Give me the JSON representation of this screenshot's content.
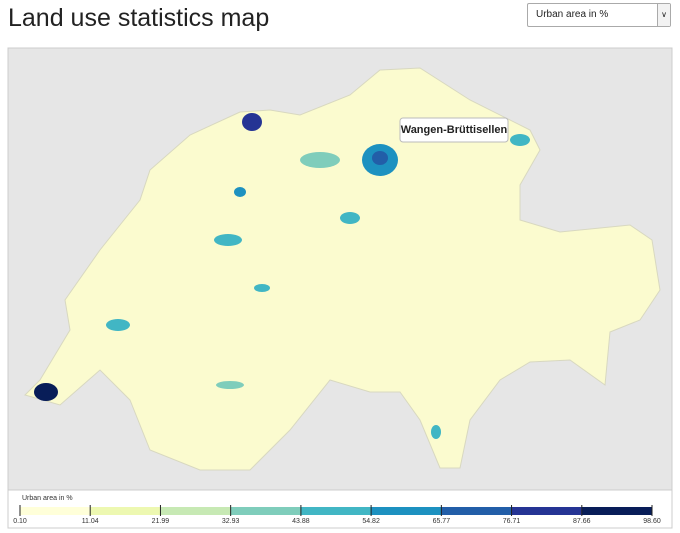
{
  "header": {
    "title": "Land use statistics map"
  },
  "selector": {
    "label": "Urban area in %"
  },
  "map": {
    "tooltip": "Wangen-Brüttisellen"
  },
  "legend": {
    "title": "Urban area in %",
    "ticks": [
      {
        "value": 0.1,
        "label": "0.10"
      },
      {
        "value": 11.04,
        "label": "11.04"
      },
      {
        "value": 21.99,
        "label": "21.99"
      },
      {
        "value": 32.93,
        "label": "32.93"
      },
      {
        "value": 43.88,
        "label": "43.88"
      },
      {
        "value": 54.82,
        "label": "54.82"
      },
      {
        "value": 65.77,
        "label": "65.77"
      },
      {
        "value": 76.71,
        "label": "76.71"
      },
      {
        "value": 87.66,
        "label": "87.66"
      },
      {
        "value": 98.6,
        "label": "98.60"
      }
    ],
    "colors": [
      "#ffffd9",
      "#edf8b1",
      "#c7e9b4",
      "#7fcdbb",
      "#41b6c4",
      "#1d91c0",
      "#225ea8",
      "#253494",
      "#081d58"
    ]
  }
}
